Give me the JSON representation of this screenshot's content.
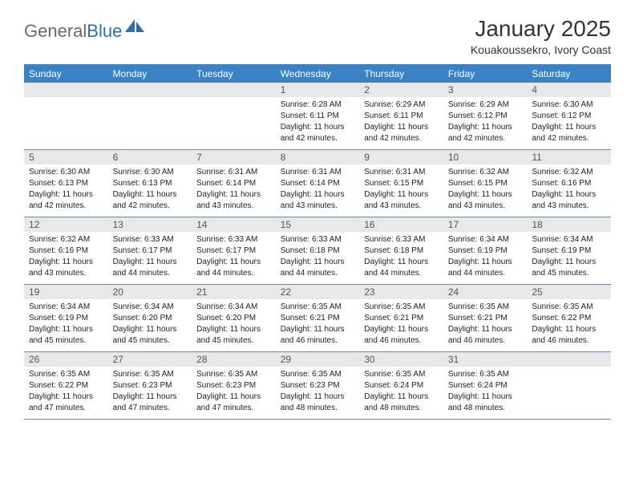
{
  "brand": {
    "part1": "General",
    "part2": "Blue"
  },
  "title": "January 2025",
  "location": "Kouakoussekro, Ivory Coast",
  "day_headers": [
    "Sunday",
    "Monday",
    "Tuesday",
    "Wednesday",
    "Thursday",
    "Friday",
    "Saturday"
  ],
  "colors": {
    "header_bg": "#3a82c4",
    "header_fg": "#ffffff",
    "daynum_bg": "#e8e8e8",
    "border": "#5a8fbf",
    "brand_gray": "#6a6a6a",
    "brand_blue": "#2f6fa8"
  },
  "weeks": [
    [
      {
        "n": "",
        "sunrise": "",
        "sunset": "",
        "daylight": ""
      },
      {
        "n": "",
        "sunrise": "",
        "sunset": "",
        "daylight": ""
      },
      {
        "n": "",
        "sunrise": "",
        "sunset": "",
        "daylight": ""
      },
      {
        "n": "1",
        "sunrise": "6:28 AM",
        "sunset": "6:11 PM",
        "daylight": "11 hours and 42 minutes."
      },
      {
        "n": "2",
        "sunrise": "6:29 AM",
        "sunset": "6:11 PM",
        "daylight": "11 hours and 42 minutes."
      },
      {
        "n": "3",
        "sunrise": "6:29 AM",
        "sunset": "6:12 PM",
        "daylight": "11 hours and 42 minutes."
      },
      {
        "n": "4",
        "sunrise": "6:30 AM",
        "sunset": "6:12 PM",
        "daylight": "11 hours and 42 minutes."
      }
    ],
    [
      {
        "n": "5",
        "sunrise": "6:30 AM",
        "sunset": "6:13 PM",
        "daylight": "11 hours and 42 minutes."
      },
      {
        "n": "6",
        "sunrise": "6:30 AM",
        "sunset": "6:13 PM",
        "daylight": "11 hours and 42 minutes."
      },
      {
        "n": "7",
        "sunrise": "6:31 AM",
        "sunset": "6:14 PM",
        "daylight": "11 hours and 43 minutes."
      },
      {
        "n": "8",
        "sunrise": "6:31 AM",
        "sunset": "6:14 PM",
        "daylight": "11 hours and 43 minutes."
      },
      {
        "n": "9",
        "sunrise": "6:31 AM",
        "sunset": "6:15 PM",
        "daylight": "11 hours and 43 minutes."
      },
      {
        "n": "10",
        "sunrise": "6:32 AM",
        "sunset": "6:15 PM",
        "daylight": "11 hours and 43 minutes."
      },
      {
        "n": "11",
        "sunrise": "6:32 AM",
        "sunset": "6:16 PM",
        "daylight": "11 hours and 43 minutes."
      }
    ],
    [
      {
        "n": "12",
        "sunrise": "6:32 AM",
        "sunset": "6:16 PM",
        "daylight": "11 hours and 43 minutes."
      },
      {
        "n": "13",
        "sunrise": "6:33 AM",
        "sunset": "6:17 PM",
        "daylight": "11 hours and 44 minutes."
      },
      {
        "n": "14",
        "sunrise": "6:33 AM",
        "sunset": "6:17 PM",
        "daylight": "11 hours and 44 minutes."
      },
      {
        "n": "15",
        "sunrise": "6:33 AM",
        "sunset": "6:18 PM",
        "daylight": "11 hours and 44 minutes."
      },
      {
        "n": "16",
        "sunrise": "6:33 AM",
        "sunset": "6:18 PM",
        "daylight": "11 hours and 44 minutes."
      },
      {
        "n": "17",
        "sunrise": "6:34 AM",
        "sunset": "6:19 PM",
        "daylight": "11 hours and 44 minutes."
      },
      {
        "n": "18",
        "sunrise": "6:34 AM",
        "sunset": "6:19 PM",
        "daylight": "11 hours and 45 minutes."
      }
    ],
    [
      {
        "n": "19",
        "sunrise": "6:34 AM",
        "sunset": "6:19 PM",
        "daylight": "11 hours and 45 minutes."
      },
      {
        "n": "20",
        "sunrise": "6:34 AM",
        "sunset": "6:20 PM",
        "daylight": "11 hours and 45 minutes."
      },
      {
        "n": "21",
        "sunrise": "6:34 AM",
        "sunset": "6:20 PM",
        "daylight": "11 hours and 45 minutes."
      },
      {
        "n": "22",
        "sunrise": "6:35 AM",
        "sunset": "6:21 PM",
        "daylight": "11 hours and 46 minutes."
      },
      {
        "n": "23",
        "sunrise": "6:35 AM",
        "sunset": "6:21 PM",
        "daylight": "11 hours and 46 minutes."
      },
      {
        "n": "24",
        "sunrise": "6:35 AM",
        "sunset": "6:21 PM",
        "daylight": "11 hours and 46 minutes."
      },
      {
        "n": "25",
        "sunrise": "6:35 AM",
        "sunset": "6:22 PM",
        "daylight": "11 hours and 46 minutes."
      }
    ],
    [
      {
        "n": "26",
        "sunrise": "6:35 AM",
        "sunset": "6:22 PM",
        "daylight": "11 hours and 47 minutes."
      },
      {
        "n": "27",
        "sunrise": "6:35 AM",
        "sunset": "6:23 PM",
        "daylight": "11 hours and 47 minutes."
      },
      {
        "n": "28",
        "sunrise": "6:35 AM",
        "sunset": "6:23 PM",
        "daylight": "11 hours and 47 minutes."
      },
      {
        "n": "29",
        "sunrise": "6:35 AM",
        "sunset": "6:23 PM",
        "daylight": "11 hours and 48 minutes."
      },
      {
        "n": "30",
        "sunrise": "6:35 AM",
        "sunset": "6:24 PM",
        "daylight": "11 hours and 48 minutes."
      },
      {
        "n": "31",
        "sunrise": "6:35 AM",
        "sunset": "6:24 PM",
        "daylight": "11 hours and 48 minutes."
      },
      {
        "n": "",
        "sunrise": "",
        "sunset": "",
        "daylight": ""
      }
    ]
  ],
  "labels": {
    "sunrise": "Sunrise:",
    "sunset": "Sunset:",
    "daylight": "Daylight:"
  }
}
